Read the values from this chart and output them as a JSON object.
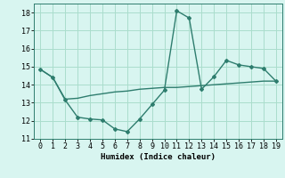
{
  "line1_x": [
    0,
    1,
    2,
    3,
    4,
    5,
    6,
    7,
    8,
    9,
    10,
    11,
    12,
    13,
    14,
    15,
    16,
    17,
    18,
    19
  ],
  "line1_y": [
    14.85,
    14.4,
    13.15,
    12.2,
    12.1,
    12.05,
    11.55,
    11.4,
    12.1,
    12.9,
    13.7,
    18.1,
    17.7,
    13.75,
    14.45,
    15.35,
    15.1,
    15.0,
    14.9,
    14.2
  ],
  "line2_x": [
    0,
    1,
    2,
    3,
    4,
    5,
    6,
    7,
    8,
    9,
    10,
    11,
    12,
    13,
    14,
    15,
    16,
    17,
    18,
    19
  ],
  "line2_y": [
    14.85,
    14.4,
    13.2,
    13.25,
    13.4,
    13.5,
    13.6,
    13.65,
    13.75,
    13.8,
    13.85,
    13.85,
    13.9,
    13.95,
    14.0,
    14.05,
    14.1,
    14.15,
    14.2,
    14.2
  ],
  "color": "#2e7d6e",
  "background_color": "#d8f5f0",
  "grid_color": "#aaddcc",
  "xlabel": "Humidex (Indice chaleur)",
  "ylim": [
    11,
    18.5
  ],
  "xlim": [
    -0.5,
    19.5
  ],
  "yticks": [
    11,
    12,
    13,
    14,
    15,
    16,
    17,
    18
  ],
  "xticks": [
    0,
    1,
    2,
    3,
    4,
    5,
    6,
    7,
    8,
    9,
    10,
    11,
    12,
    13,
    14,
    15,
    16,
    17,
    18,
    19
  ],
  "marker": "D",
  "markersize": 2.0,
  "linewidth": 1.0,
  "tick_fontsize": 6.0,
  "xlabel_fontsize": 6.5
}
